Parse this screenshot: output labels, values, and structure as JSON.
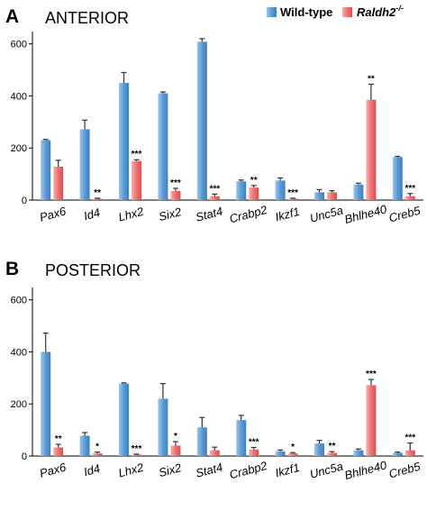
{
  "legend": {
    "wildtype_label": "Wild-type",
    "mutant_label_base": "Raldh2",
    "mutant_label_sup": "-/-"
  },
  "colors": {
    "wildtype": "#5b9bd5",
    "mutant": "#f07070"
  },
  "panels": [
    {
      "letter": "A",
      "title": "ANTERIOR"
    },
    {
      "letter": "B",
      "title": "POSTERIOR"
    }
  ],
  "chart_data": [
    {
      "type": "bar",
      "title": "ANTERIOR",
      "categories": [
        "Pax6",
        "Id4",
        "Lhx2",
        "Six2",
        "Stat4",
        "Crabp2",
        "Ikzf1",
        "Unc5a",
        "Bhlhe40",
        "Creb5"
      ],
      "series": [
        {
          "name": "Wild-type",
          "values": [
            230,
            272,
            450,
            410,
            608,
            72,
            75,
            30,
            60,
            165
          ],
          "errors": [
            3,
            35,
            40,
            5,
            12,
            5,
            10,
            10,
            5,
            3
          ]
        },
        {
          "name": "Raldh2-/-",
          "values": [
            128,
            5,
            150,
            35,
            15,
            48,
            5,
            30,
            385,
            15
          ],
          "errors": [
            25,
            2,
            5,
            10,
            8,
            8,
            2,
            6,
            60,
            10
          ]
        }
      ],
      "significance": [
        [
          "",
          ""
        ],
        [
          "",
          "**"
        ],
        [
          "",
          "***"
        ],
        [
          "",
          "***"
        ],
        [
          "",
          "***"
        ],
        [
          "",
          "**"
        ],
        [
          "",
          "***"
        ],
        [
          "",
          ""
        ],
        [
          "",
          "**"
        ],
        [
          "",
          "***"
        ]
      ],
      "yticks": [
        0,
        200,
        400,
        600
      ],
      "ylim": [
        0,
        630
      ],
      "xlabel": "",
      "ylabel": ""
    },
    {
      "type": "bar",
      "title": "POSTERIOR",
      "categories": [
        "Pax6",
        "Id4",
        "Lhx2",
        "Six2",
        "Stat4",
        "Crabp2",
        "Ikzf1",
        "Unc5a",
        "Bhlhe40",
        "Creb5"
      ],
      "series": [
        {
          "name": "Wild-type",
          "values": [
            400,
            78,
            278,
            220,
            110,
            138,
            18,
            48,
            22,
            12
          ],
          "errors": [
            72,
            12,
            3,
            58,
            38,
            18,
            5,
            12,
            5,
            3
          ]
        },
        {
          "name": "Raldh2-/-",
          "values": [
            33,
            10,
            5,
            40,
            22,
            25,
            10,
            12,
            272,
            22
          ],
          "errors": [
            12,
            5,
            2,
            15,
            12,
            8,
            3,
            5,
            22,
            28
          ]
        }
      ],
      "significance": [
        [
          "",
          "**"
        ],
        [
          "",
          "*"
        ],
        [
          "",
          "***"
        ],
        [
          "",
          "*"
        ],
        [
          "",
          ""
        ],
        [
          "",
          "***"
        ],
        [
          "",
          "*"
        ],
        [
          "",
          "**"
        ],
        [
          "",
          "***"
        ],
        [
          "",
          "***"
        ]
      ],
      "yticks": [
        0,
        200,
        400,
        600
      ],
      "ylim": [
        0,
        630
      ],
      "xlabel": "",
      "ylabel": ""
    }
  ]
}
